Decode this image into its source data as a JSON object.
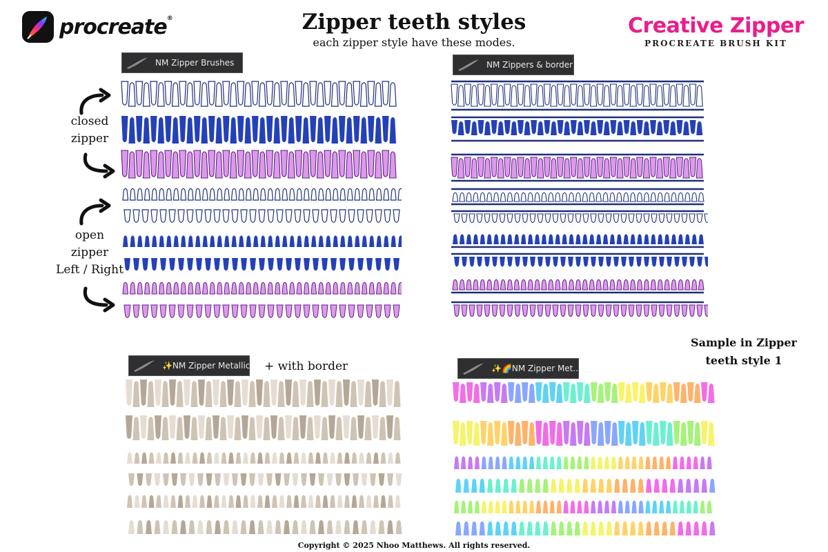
{
  "header": {
    "logo_text": "procreate",
    "logo_mark": "®",
    "title": "Zipper teeth styles",
    "subtitle": "each zipper style have these modes.",
    "brand_title": "Creative Zipper",
    "brand_subtitle": "PROCREATE BRUSH KIT"
  },
  "brushes": {
    "standard": "NM Zipper Brushes",
    "bordered": "NM Zippers & border",
    "metallic": "✨NM Zipper Metallic",
    "rainbow": "✨🌈NM Zipper Met..."
  },
  "labels": {
    "closed_line1": "closed",
    "closed_line2": "zipper",
    "open_line1": "open",
    "open_line2": "zipper",
    "open_line3": "Left / Right",
    "with_border": "+ with border",
    "sample_line1": "Sample in Zipper",
    "sample_line2": "teeth style 1"
  },
  "colors": {
    "navy": "#1f2f7a",
    "blue": "#2441b8",
    "pink": "#dd9aea",
    "purple_outline": "#5b1f86",
    "metallic_light": "#e6ddd2",
    "metallic_mid": "#cfc3b4",
    "metallic_dark": "#b5a796",
    "brand_pink": "#e91e8c"
  },
  "footer": {
    "copyright": "Copyright © 2025 Nhoo Matthews. All rights reserved."
  }
}
